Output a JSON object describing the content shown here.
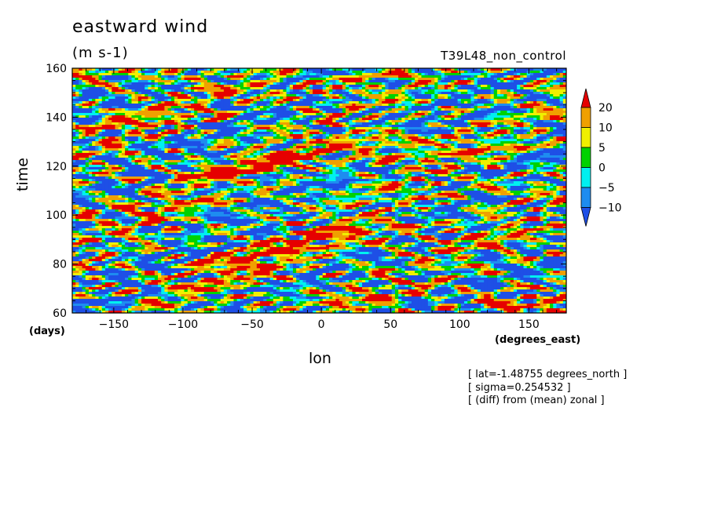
{
  "chart_data": {
    "type": "heatmap",
    "title": "eastward wind",
    "units": "(m s-1)",
    "run_label": "T39L48_non_control",
    "xlabel": "lon",
    "xunit": "(degrees_east)",
    "ylabel": "time",
    "yunit": "(days)",
    "xlim": [
      -180,
      177
    ],
    "ylim": [
      60,
      160
    ],
    "x_ticks": [
      -150,
      -100,
      -50,
      0,
      50,
      100,
      150
    ],
    "y_ticks": [
      60,
      80,
      100,
      120,
      140,
      160
    ],
    "x_tick_labels": [
      "-150",
      "-100",
      "-50",
      "0",
      "50",
      "100",
      "150"
    ],
    "y_tick_labels": [
      "60",
      "80",
      "100",
      "120",
      "140",
      "160"
    ],
    "colorbar": {
      "levels": [
        -10,
        -5,
        0,
        5,
        10,
        20
      ],
      "labels": [
        "20",
        "10",
        "5",
        "0",
        "-5",
        "-10"
      ],
      "colors": [
        "#1e4fe6",
        "#1e8cf0",
        "#00f0f0",
        "#00d200",
        "#f0f000",
        "#f0a000",
        "#e60000"
      ],
      "extend": "both"
    },
    "streaks": [
      {
        "t0": 80,
        "lon0": -70,
        "t1": 96,
        "lon1": 50,
        "value": 22
      },
      {
        "t0": 115,
        "lon0": -90,
        "t1": 132,
        "lon1": 60,
        "value": 22
      },
      {
        "t0": 148,
        "lon0": -60,
        "t1": 157,
        "lon1": 30,
        "value": 14
      },
      {
        "t0": 98,
        "lon0": -170,
        "t1": 106,
        "lon1": -110,
        "value": 13
      },
      {
        "t0": 70,
        "lon0": -110,
        "t1": 78,
        "lon1": -40,
        "value": 12
      },
      {
        "t0": 122,
        "lon0": 40,
        "t1": 128,
        "lon1": 140,
        "value": 13
      },
      {
        "t0": 62,
        "lon0": 120,
        "t1": 66,
        "lon1": 165,
        "value": 16
      },
      {
        "t0": 136,
        "lon0": -150,
        "t1": 142,
        "lon1": -100,
        "value": 14
      },
      {
        "t0": 64,
        "lon0": -10,
        "t1": 68,
        "lon1": 40,
        "value": 15
      },
      {
        "t0": 155,
        "lon0": -175,
        "t1": 159,
        "lon1": -130,
        "value": 15
      },
      {
        "t0": 86,
        "lon0": 80,
        "t1": 92,
        "lon1": 150,
        "value": 10
      },
      {
        "t0": 108,
        "lon0": 90,
        "t1": 114,
        "lon1": 170,
        "value": 9
      }
    ],
    "annotations": [
      "[ lat=-1.48755 degrees_north ]",
      "[ sigma=0.254532 ]",
      "[ (diff) from (mean) zonal ]"
    ]
  }
}
